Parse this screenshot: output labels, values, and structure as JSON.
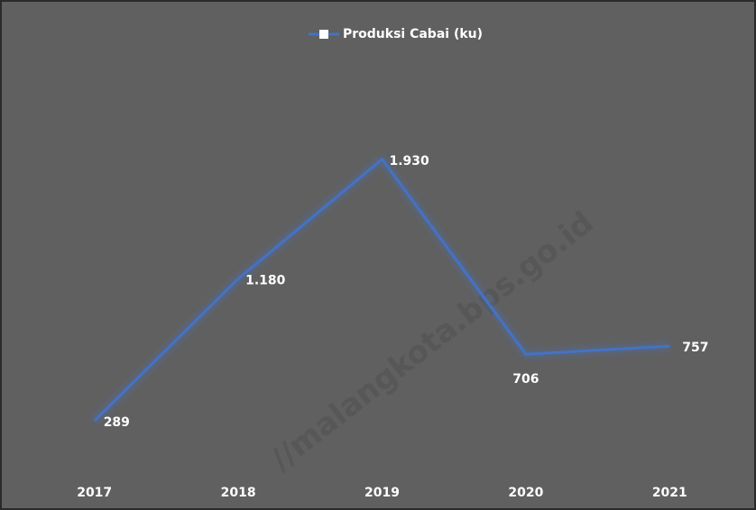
{
  "chart_data": {
    "type": "line",
    "categories": [
      "2017",
      "2018",
      "2019",
      "2020",
      "2021"
    ],
    "series": [
      {
        "name": "Produksi Cabai (ku)",
        "color": "#4472c4",
        "values": [
          289,
          1180,
          1930,
          706,
          757
        ],
        "value_labels": [
          "289",
          "1.180",
          "1.930",
          "706",
          "757"
        ]
      }
    ],
    "ylim": [
      0,
      2500
    ],
    "legend": "top",
    "watermark": "//malangkota.bps.go.id"
  }
}
